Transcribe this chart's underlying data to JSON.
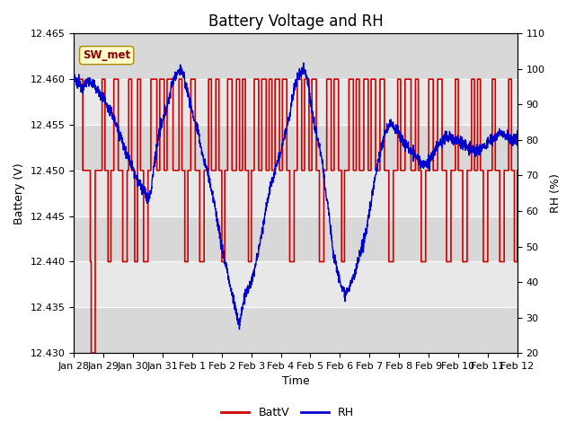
{
  "title": "Battery Voltage and RH",
  "xlabel": "Time",
  "ylabel_left": "Battery (V)",
  "ylabel_right": "RH (%)",
  "ylim_left": [
    12.43,
    12.465
  ],
  "ylim_right": [
    20,
    110
  ],
  "yticks_left": [
    12.43,
    12.435,
    12.44,
    12.445,
    12.45,
    12.455,
    12.46,
    12.465
  ],
  "yticks_right": [
    20,
    30,
    40,
    50,
    60,
    70,
    80,
    90,
    100,
    110
  ],
  "xtick_labels": [
    "Jan 28",
    "Jan 29",
    "Jan 30",
    "Jan 31",
    "Feb 1",
    "Feb 2",
    "Feb 3",
    "Feb 4",
    "Feb 5",
    "Feb 6",
    "Feb 7",
    "Feb 8",
    "Feb 9",
    "Feb 10",
    "Feb 11",
    "Feb 12"
  ],
  "annotation_text": "SW_met",
  "annotation_facecolor": "#ffffcc",
  "annotation_edgecolor": "#aa8800",
  "color_battv": "#cc0000",
  "color_rh": "#0000cc",
  "legend_labels": [
    "BattV",
    "RH"
  ],
  "title_fontsize": 12,
  "label_fontsize": 9,
  "tick_fontsize": 8,
  "band_colors": [
    "#d8d8d8",
    "#e8e8e8"
  ],
  "band_yticks": [
    12.43,
    12.435,
    12.44,
    12.445,
    12.45,
    12.455,
    12.46,
    12.465
  ]
}
